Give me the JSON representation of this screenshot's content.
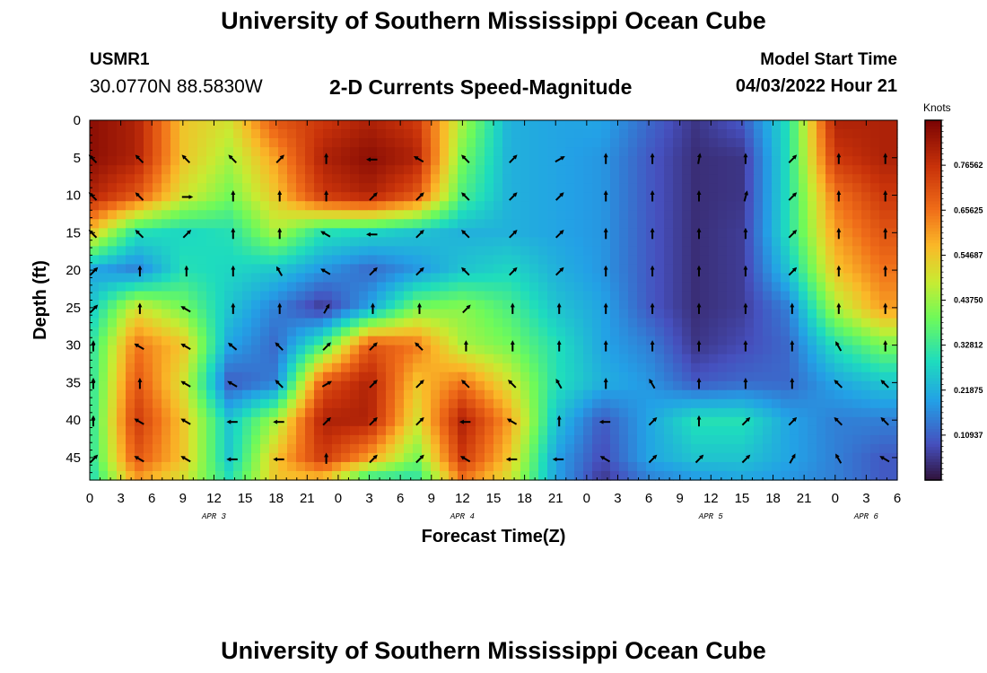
{
  "header": {
    "title": "University of Southern Mississippi Ocean Cube",
    "station": "USMR1",
    "coordinates": "30.0770N  88.5830W",
    "subtitle": "2-D Currents Speed-Magnitude",
    "model_start_label": "Model Start Time",
    "model_start_value": "04/03/2022 Hour 21"
  },
  "footer": {
    "title": "University of Southern Mississippi Ocean Cube"
  },
  "chart_data": {
    "type": "heatmap",
    "title": "2-D Currents Speed-Magnitude",
    "xlabel": "Forecast Time(Z)",
    "ylabel": "Depth (ft)",
    "x_tick_labels": [
      "0",
      "3",
      "6",
      "9",
      "12",
      "15",
      "18",
      "21",
      "0",
      "3",
      "6",
      "9",
      "12",
      "15",
      "18",
      "21",
      "0",
      "3",
      "6",
      "9",
      "12",
      "15",
      "18",
      "21",
      "0",
      "3",
      "6"
    ],
    "x_range": [
      0,
      78
    ],
    "date_labels": [
      {
        "label": "APR 3",
        "hour": 12
      },
      {
        "label": "APR 4",
        "hour": 36
      },
      {
        "label": "APR 5",
        "hour": 60
      },
      {
        "label": "APR 6",
        "hour": 75
      }
    ],
    "y_ticks": [
      0,
      5,
      10,
      15,
      20,
      25,
      30,
      35,
      40,
      45
    ],
    "y_range": [
      0,
      48
    ],
    "colorbar": {
      "units": "Knots",
      "range": [
        0,
        0.875
      ],
      "tick_labels": [
        "0.76562",
        "0.65625",
        "0.54687",
        "0.43750",
        "0.32812",
        "0.21875",
        "0.10937"
      ],
      "tick_values": [
        0.76562,
        0.65625,
        0.54687,
        0.4375,
        0.32812,
        0.21875,
        0.10937
      ]
    },
    "grid_hours": [
      0,
      4.5,
      9,
      13.5,
      18,
      22.5,
      27,
      31.5,
      36,
      40.5,
      45,
      49.5,
      54,
      58.5,
      63,
      67.5,
      72,
      76.5
    ],
    "grid_depths": [
      0,
      5,
      10,
      15,
      20,
      25,
      30,
      35,
      40,
      45,
      48
    ],
    "speed": [
      [
        0.85,
        0.8,
        0.55,
        0.5,
        0.7,
        0.75,
        0.8,
        0.75,
        0.45,
        0.22,
        0.2,
        0.2,
        0.12,
        0.05,
        0.1,
        0.3,
        0.8,
        0.8
      ],
      [
        0.85,
        0.8,
        0.55,
        0.45,
        0.6,
        0.8,
        0.85,
        0.8,
        0.4,
        0.22,
        0.2,
        0.18,
        0.1,
        0.04,
        0.05,
        0.3,
        0.75,
        0.8
      ],
      [
        0.8,
        0.7,
        0.5,
        0.4,
        0.55,
        0.75,
        0.8,
        0.7,
        0.35,
        0.22,
        0.2,
        0.18,
        0.1,
        0.04,
        0.05,
        0.3,
        0.65,
        0.75
      ],
      [
        0.55,
        0.3,
        0.28,
        0.3,
        0.45,
        0.3,
        0.28,
        0.25,
        0.22,
        0.22,
        0.2,
        0.18,
        0.1,
        0.04,
        0.06,
        0.3,
        0.6,
        0.7
      ],
      [
        0.2,
        0.15,
        0.3,
        0.28,
        0.25,
        0.18,
        0.12,
        0.18,
        0.25,
        0.28,
        0.22,
        0.18,
        0.1,
        0.04,
        0.06,
        0.25,
        0.55,
        0.65
      ],
      [
        0.25,
        0.5,
        0.4,
        0.25,
        0.15,
        0.05,
        0.2,
        0.4,
        0.42,
        0.35,
        0.25,
        0.2,
        0.1,
        0.04,
        0.06,
        0.15,
        0.45,
        0.6
      ],
      [
        0.3,
        0.65,
        0.55,
        0.2,
        0.12,
        0.35,
        0.7,
        0.65,
        0.45,
        0.4,
        0.3,
        0.2,
        0.15,
        0.05,
        0.08,
        0.12,
        0.3,
        0.4
      ],
      [
        0.3,
        0.7,
        0.5,
        0.1,
        0.15,
        0.7,
        0.8,
        0.55,
        0.65,
        0.5,
        0.3,
        0.22,
        0.18,
        0.1,
        0.12,
        0.12,
        0.2,
        0.25
      ],
      [
        0.3,
        0.75,
        0.55,
        0.25,
        0.45,
        0.8,
        0.8,
        0.5,
        0.8,
        0.6,
        0.25,
        0.1,
        0.2,
        0.3,
        0.3,
        0.2,
        0.15,
        0.15
      ],
      [
        0.3,
        0.7,
        0.55,
        0.25,
        0.55,
        0.75,
        0.6,
        0.4,
        0.75,
        0.55,
        0.2,
        0.08,
        0.2,
        0.25,
        0.25,
        0.2,
        0.15,
        0.1
      ],
      [
        0.28,
        0.6,
        0.5,
        0.3,
        0.55,
        0.55,
        0.3,
        0.3,
        0.65,
        0.5,
        0.2,
        0.05,
        0.15,
        0.18,
        0.2,
        0.18,
        0.15,
        0.1
      ]
    ],
    "arrow_hours": [
      0,
      4.5,
      9,
      13.5,
      18,
      22.5,
      27,
      31.5,
      36,
      40.5,
      45,
      49.5,
      54,
      58.5,
      63,
      67.5,
      72,
      76.5
    ],
    "arrow_depths": [
      5,
      10,
      15,
      20,
      25,
      30,
      35,
      40,
      45
    ],
    "arrow_directions_deg": [
      [
        315,
        315,
        315,
        315,
        45,
        0,
        270,
        300,
        315,
        45,
        60,
        0,
        0,
        10,
        0,
        45,
        0,
        0
      ],
      [
        315,
        315,
        90,
        0,
        0,
        0,
        45,
        45,
        315,
        45,
        45,
        0,
        0,
        0,
        15,
        45,
        0,
        0
      ],
      [
        315,
        315,
        45,
        0,
        0,
        300,
        270,
        45,
        315,
        45,
        45,
        0,
        0,
        0,
        0,
        45,
        0,
        0
      ],
      [
        45,
        0,
        0,
        0,
        330,
        300,
        45,
        45,
        315,
        45,
        45,
        0,
        0,
        0,
        0,
        45,
        0,
        0
      ],
      [
        45,
        0,
        300,
        0,
        0,
        30,
        0,
        0,
        45,
        0,
        0,
        0,
        0,
        0,
        0,
        0,
        0,
        0
      ],
      [
        0,
        300,
        300,
        310,
        315,
        45,
        45,
        315,
        0,
        0,
        0,
        0,
        0,
        0,
        0,
        0,
        330,
        0
      ],
      [
        0,
        0,
        300,
        300,
        315,
        60,
        45,
        45,
        315,
        315,
        330,
        0,
        330,
        0,
        0,
        0,
        315,
        315
      ],
      [
        0,
        300,
        300,
        270,
        270,
        45,
        45,
        45,
        270,
        300,
        0,
        270,
        45,
        0,
        45,
        45,
        315,
        315
      ],
      [
        45,
        300,
        300,
        270,
        270,
        0,
        45,
        45,
        300,
        270,
        270,
        300,
        45,
        45,
        45,
        30,
        330,
        300
      ]
    ]
  }
}
